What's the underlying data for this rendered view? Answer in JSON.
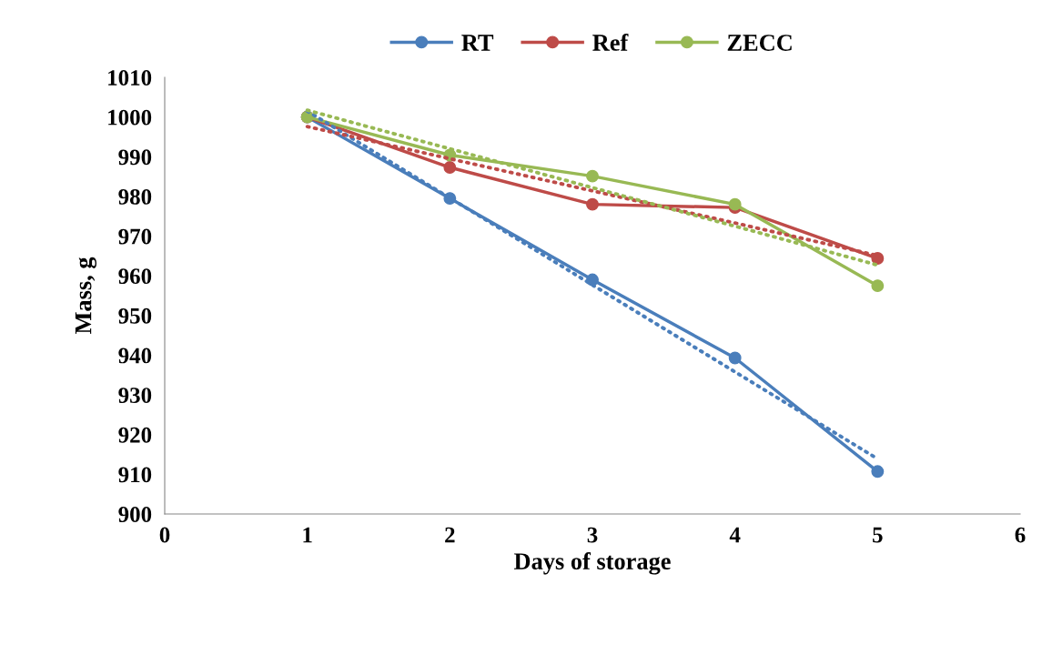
{
  "chart_data": {
    "type": "line",
    "xlabel": "Days of storage",
    "ylabel": "Mass, g",
    "x": [
      1,
      2,
      3,
      4,
      5
    ],
    "series": [
      {
        "name": "RT",
        "color": "#4a7ebb",
        "values": [
          1000,
          979.5,
          959,
          939.3,
          910.7
        ],
        "marker": "circle",
        "line_style": "solid"
      },
      {
        "name": "Ref",
        "color": "#be4b48",
        "values": [
          1000,
          987.3,
          978,
          977.2,
          964.4
        ],
        "marker": "circle",
        "line_style": "solid"
      },
      {
        "name": "ZECC",
        "color": "#98b954",
        "values": [
          1000,
          990.4,
          985.1,
          978,
          957.5
        ],
        "marker": "circle",
        "line_style": "solid"
      },
      {
        "color": "#4a7ebb",
        "values": [
          1001.5,
          979.6,
          957.7,
          935.8,
          913.9
        ],
        "marker": "none",
        "line_style": "dotted"
      },
      {
        "color": "#be4b48",
        "values": [
          997.6,
          989.5,
          981.4,
          973.3,
          965.1
        ],
        "marker": "none",
        "line_style": "dotted"
      },
      {
        "color": "#98b954",
        "values": [
          1001.7,
          992.0,
          982.2,
          972.5,
          962.7
        ],
        "marker": "none",
        "line_style": "dotted"
      }
    ],
    "xlim": [
      0,
      6
    ],
    "xticks": [
      0,
      1,
      2,
      3,
      4,
      5,
      6
    ],
    "ylim": [
      900,
      1010
    ],
    "yticks": [
      900,
      910,
      920,
      930,
      940,
      950,
      960,
      970,
      980,
      990,
      1000,
      1010
    ],
    "grid": false,
    "legend": "top"
  }
}
